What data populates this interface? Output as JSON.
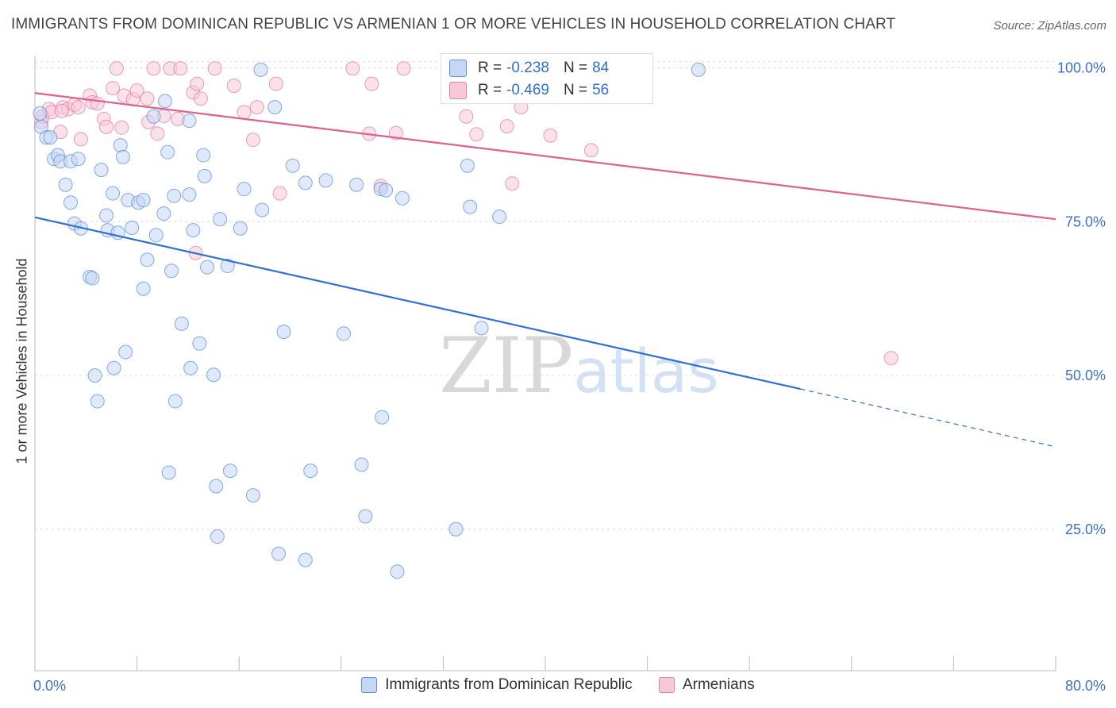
{
  "title": "IMMIGRANTS FROM DOMINICAN REPUBLIC VS ARMENIAN 1 OR MORE VEHICLES IN HOUSEHOLD CORRELATION CHART",
  "source": "Source: ZipAtlas.com",
  "watermark": {
    "zip": "ZIP",
    "atlas": "atlas"
  },
  "colors": {
    "blue": "#5b8fe0",
    "blue_fill": "#c4d7f4",
    "blue_line": "#2f6fd6",
    "pink": "#e27fa2",
    "pink_fill": "#f7c8d8",
    "pink_line": "#e0608a",
    "axis_text": "#3b6fc9"
  },
  "stats": {
    "blue": {
      "r_label": "R = ",
      "r_value": "-0.238",
      "n_label": "N = ",
      "n_value": "84"
    },
    "pink": {
      "r_label": "R = ",
      "r_value": "-0.469",
      "n_label": "N = ",
      "n_value": "56"
    }
  },
  "legend": {
    "blue_label": "Immigrants from Dominican Republic",
    "pink_label": "Armenians"
  },
  "chart_data": {
    "type": "scatter",
    "title": "IMMIGRANTS FROM DOMINICAN REPUBLIC VS ARMENIAN 1 OR MORE VEHICLES IN HOUSEHOLD CORRELATION CHART",
    "xlabel": "",
    "ylabel": "1 or more Vehicles in Household",
    "xlim": [
      0,
      80
    ],
    "ylim": [
      2,
      102
    ],
    "x_ticks": [
      0,
      8,
      16,
      24,
      32,
      40,
      48,
      56,
      64,
      72,
      80
    ],
    "x_tick_labels": [
      {
        "value": 0,
        "label": "0.0%"
      },
      {
        "value": 80,
        "label": "80.0%"
      }
    ],
    "y_ticks": [
      {
        "value": 100,
        "label": "100.0%"
      },
      {
        "value": 75,
        "label": "75.0%"
      },
      {
        "value": 50,
        "label": "50.0%"
      },
      {
        "value": 25,
        "label": "25.0%"
      }
    ],
    "series": [
      {
        "name": "Immigrants from Dominican Republic",
        "color": "#5b8fe0",
        "points": [
          [
            0.4,
            92.6
          ],
          [
            0.5,
            90.4
          ],
          [
            0.9,
            88.7
          ],
          [
            1.2,
            88.7
          ],
          [
            1.5,
            85.2
          ],
          [
            1.8,
            85.8
          ],
          [
            2.0,
            84.8
          ],
          [
            2.4,
            81.0
          ],
          [
            2.8,
            84.8
          ],
          [
            3.4,
            85.2
          ],
          [
            2.8,
            78.1
          ],
          [
            3.1,
            74.7
          ],
          [
            3.6,
            73.9
          ],
          [
            5.2,
            83.4
          ],
          [
            6.1,
            79.6
          ],
          [
            6.7,
            87.4
          ],
          [
            7.3,
            78.5
          ],
          [
            8.1,
            78.1
          ],
          [
            8.5,
            78.5
          ],
          [
            9.3,
            92.1
          ],
          [
            7.6,
            74.0
          ],
          [
            5.7,
            73.6
          ],
          [
            5.6,
            76.0
          ],
          [
            6.5,
            73.2
          ],
          [
            9.5,
            72.8
          ],
          [
            4.3,
            66.0
          ],
          [
            4.5,
            65.8
          ],
          [
            8.5,
            64.1
          ],
          [
            8.8,
            68.8
          ],
          [
            10.1,
            76.3
          ],
          [
            10.4,
            86.3
          ],
          [
            10.7,
            67.0
          ],
          [
            10.9,
            79.2
          ],
          [
            11.5,
            58.4
          ],
          [
            12.1,
            91.4
          ],
          [
            12.1,
            79.4
          ],
          [
            12.4,
            73.6
          ],
          [
            12.9,
            55.2
          ],
          [
            13.2,
            85.8
          ],
          [
            13.3,
            82.4
          ],
          [
            13.5,
            67.6
          ],
          [
            14.0,
            50.1
          ],
          [
            14.5,
            75.4
          ],
          [
            15.1,
            67.8
          ],
          [
            16.1,
            73.9
          ],
          [
            16.4,
            80.3
          ],
          [
            17.7,
            99.7
          ],
          [
            17.8,
            76.9
          ],
          [
            18.8,
            93.6
          ],
          [
            19.5,
            57.1
          ],
          [
            20.2,
            84.1
          ],
          [
            21.2,
            81.3
          ],
          [
            22.8,
            81.7
          ],
          [
            24.2,
            56.8
          ],
          [
            25.2,
            81.0
          ],
          [
            27.1,
            80.3
          ],
          [
            27.5,
            80.1
          ],
          [
            28.8,
            78.8
          ],
          [
            33.9,
            84.1
          ],
          [
            34.1,
            77.4
          ],
          [
            35.0,
            57.7
          ],
          [
            36.4,
            75.8
          ],
          [
            52.0,
            99.7
          ],
          [
            7.1,
            53.8
          ],
          [
            6.2,
            51.2
          ],
          [
            4.7,
            50.0
          ],
          [
            4.9,
            45.8
          ],
          [
            12.2,
            51.2
          ],
          [
            11.0,
            45.8
          ],
          [
            27.2,
            43.2
          ],
          [
            10.5,
            34.2
          ],
          [
            15.3,
            34.5
          ],
          [
            21.6,
            34.5
          ],
          [
            25.6,
            35.5
          ],
          [
            17.1,
            30.5
          ],
          [
            25.9,
            27.1
          ],
          [
            33.0,
            25.0
          ],
          [
            14.3,
            23.8
          ],
          [
            19.1,
            21.0
          ],
          [
            21.2,
            20.0
          ],
          [
            28.4,
            18.1
          ],
          [
            10.2,
            94.6
          ],
          [
            14.2,
            32.0
          ],
          [
            6.9,
            85.5
          ]
        ]
      },
      {
        "name": "Armenians",
        "color": "#e27fa2",
        "points": [
          [
            0.5,
            91.2
          ],
          [
            0.6,
            92.1
          ],
          [
            1.1,
            93.3
          ],
          [
            1.3,
            92.8
          ],
          [
            2.0,
            89.6
          ],
          [
            2.2,
            93.6
          ],
          [
            2.6,
            93.3
          ],
          [
            3.1,
            94.0
          ],
          [
            3.4,
            93.6
          ],
          [
            3.6,
            88.4
          ],
          [
            4.3,
            95.5
          ],
          [
            4.5,
            94.4
          ],
          [
            4.9,
            94.2
          ],
          [
            5.4,
            91.7
          ],
          [
            5.6,
            90.4
          ],
          [
            6.1,
            96.7
          ],
          [
            6.4,
            99.9
          ],
          [
            6.8,
            90.3
          ],
          [
            7.0,
            95.5
          ],
          [
            7.7,
            94.9
          ],
          [
            8.0,
            96.3
          ],
          [
            8.8,
            95.0
          ],
          [
            8.9,
            91.2
          ],
          [
            9.3,
            99.9
          ],
          [
            9.6,
            89.3
          ],
          [
            10.1,
            92.2
          ],
          [
            10.6,
            99.9
          ],
          [
            11.2,
            91.7
          ],
          [
            11.4,
            99.9
          ],
          [
            12.4,
            96.0
          ],
          [
            12.7,
            97.4
          ],
          [
            13.0,
            95.0
          ],
          [
            14.1,
            99.9
          ],
          [
            15.6,
            97.1
          ],
          [
            16.4,
            92.8
          ],
          [
            17.1,
            88.3
          ],
          [
            17.4,
            93.6
          ],
          [
            18.9,
            97.4
          ],
          [
            19.2,
            79.6
          ],
          [
            24.9,
            99.9
          ],
          [
            26.2,
            89.3
          ],
          [
            26.4,
            97.4
          ],
          [
            27.1,
            80.8
          ],
          [
            28.3,
            89.4
          ],
          [
            28.9,
            99.9
          ],
          [
            32.4,
            99.9
          ],
          [
            33.8,
            92.1
          ],
          [
            34.6,
            89.2
          ],
          [
            37.0,
            90.5
          ],
          [
            37.4,
            81.2
          ],
          [
            38.1,
            93.6
          ],
          [
            40.4,
            89.0
          ],
          [
            43.6,
            86.6
          ],
          [
            67.1,
            52.8
          ],
          [
            12.6,
            69.9
          ],
          [
            2.1,
            93.0
          ]
        ]
      }
    ],
    "trend_lines": [
      {
        "series": "Immigrants from Dominican Republic",
        "solid": {
          "x0": 0,
          "y0": 75.7,
          "x1": 60,
          "y1": 47.8
        },
        "dashed": {
          "x0": 60,
          "y0": 47.8,
          "x1": 80,
          "y1": 38.4
        }
      },
      {
        "series": "Armenians",
        "solid": {
          "x0": 0,
          "y0": 95.9,
          "x1": 80,
          "y1": 75.4
        }
      }
    ]
  }
}
